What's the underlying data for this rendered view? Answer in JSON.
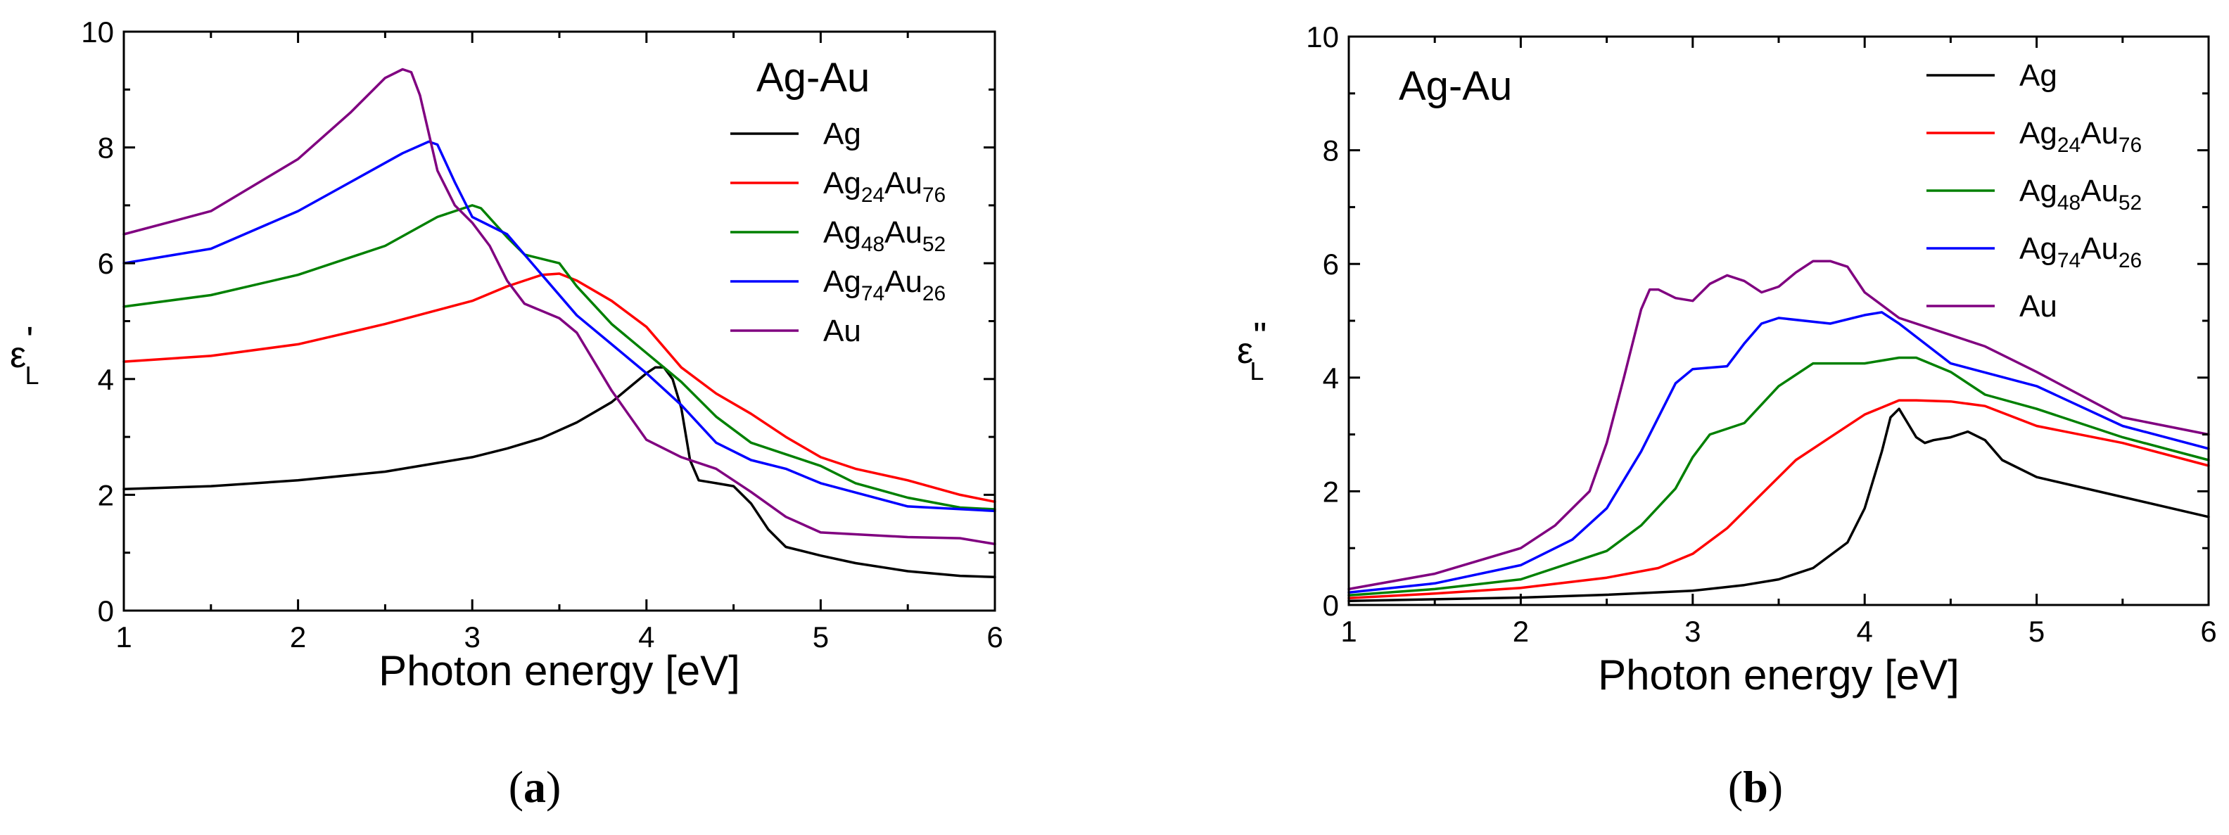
{
  "chart_data": [
    {
      "id": "a",
      "type": "line",
      "caption_letter": "a",
      "ylabel": "ε",
      "ylabel_prime": "'",
      "ylabel_sub": "L",
      "xlabel": "Photon energy [eV]",
      "xlim": [
        1,
        6
      ],
      "ylim": [
        0,
        10
      ],
      "xticks": [
        1,
        2,
        3,
        4,
        5,
        6
      ],
      "yticks": [
        0,
        2,
        4,
        6,
        8,
        10
      ],
      "legend_title": "Ag-Au",
      "legend_position": "top-right",
      "series": [
        {
          "name": "Ag",
          "label_parts": [
            [
              "Ag",
              ""
            ]
          ],
          "color": "#000000",
          "x": [
            1.0,
            1.5,
            2.0,
            2.5,
            2.8,
            3.0,
            3.2,
            3.4,
            3.6,
            3.8,
            3.9,
            4.0,
            4.05,
            4.1,
            4.15,
            4.2,
            4.25,
            4.3,
            4.4,
            4.5,
            4.6,
            4.7,
            4.8,
            5.0,
            5.2,
            5.5,
            5.8,
            6.0
          ],
          "y": [
            2.1,
            2.15,
            2.25,
            2.4,
            2.55,
            2.65,
            2.8,
            2.98,
            3.25,
            3.6,
            3.85,
            4.1,
            4.2,
            4.2,
            4.0,
            3.5,
            2.6,
            2.25,
            2.2,
            2.15,
            1.85,
            1.4,
            1.1,
            0.95,
            0.82,
            0.68,
            0.6,
            0.58
          ]
        },
        {
          "name": "Ag24Au76",
          "label_parts": [
            [
              "Ag",
              "24"
            ],
            [
              "Au",
              "76"
            ]
          ],
          "color": "#ff0000",
          "x": [
            1.0,
            1.5,
            2.0,
            2.5,
            3.0,
            3.2,
            3.4,
            3.5,
            3.6,
            3.8,
            4.0,
            4.2,
            4.4,
            4.6,
            4.8,
            5.0,
            5.2,
            5.5,
            5.8,
            6.0
          ],
          "y": [
            4.3,
            4.4,
            4.6,
            4.95,
            5.35,
            5.6,
            5.8,
            5.82,
            5.7,
            5.35,
            4.9,
            4.2,
            3.75,
            3.4,
            3.0,
            2.65,
            2.45,
            2.25,
            2.0,
            1.88
          ]
        },
        {
          "name": "Ag48Au52",
          "label_parts": [
            [
              "Ag",
              "48"
            ],
            [
              "Au",
              "52"
            ]
          ],
          "color": "#008000",
          "x": [
            1.0,
            1.5,
            2.0,
            2.5,
            2.8,
            3.0,
            3.05,
            3.2,
            3.3,
            3.5,
            3.6,
            3.8,
            4.0,
            4.2,
            4.4,
            4.6,
            4.8,
            5.0,
            5.2,
            5.5,
            5.8,
            6.0
          ],
          "y": [
            5.25,
            5.45,
            5.8,
            6.3,
            6.8,
            7.0,
            6.95,
            6.45,
            6.15,
            6.0,
            5.6,
            4.95,
            4.45,
            3.95,
            3.35,
            2.9,
            2.7,
            2.5,
            2.2,
            1.95,
            1.78,
            1.75
          ]
        },
        {
          "name": "Ag74Au26",
          "label_parts": [
            [
              "Ag",
              "74"
            ],
            [
              "Au",
              "26"
            ]
          ],
          "color": "#0000ff",
          "x": [
            1.0,
            1.5,
            2.0,
            2.3,
            2.6,
            2.75,
            2.8,
            2.9,
            3.0,
            3.2,
            3.4,
            3.6,
            3.8,
            4.0,
            4.2,
            4.4,
            4.6,
            4.8,
            5.0,
            5.5,
            6.0
          ],
          "y": [
            6.0,
            6.25,
            6.9,
            7.4,
            7.9,
            8.1,
            8.05,
            7.4,
            6.8,
            6.5,
            5.8,
            5.1,
            4.6,
            4.1,
            3.55,
            2.9,
            2.6,
            2.45,
            2.2,
            1.8,
            1.72
          ]
        },
        {
          "name": "Au",
          "label_parts": [
            [
              "Au",
              ""
            ]
          ],
          "color": "#800080",
          "x": [
            1.0,
            1.5,
            2.0,
            2.3,
            2.5,
            2.6,
            2.65,
            2.7,
            2.8,
            2.9,
            3.0,
            3.1,
            3.2,
            3.3,
            3.5,
            3.6,
            3.8,
            4.0,
            4.2,
            4.4,
            4.6,
            4.8,
            5.0,
            5.5,
            5.8,
            6.0
          ],
          "y": [
            6.5,
            6.9,
            7.8,
            8.6,
            9.2,
            9.35,
            9.3,
            8.9,
            7.6,
            7.0,
            6.7,
            6.3,
            5.7,
            5.3,
            5.05,
            4.8,
            3.8,
            2.95,
            2.65,
            2.45,
            2.05,
            1.62,
            1.35,
            1.27,
            1.25,
            1.15
          ]
        }
      ]
    },
    {
      "id": "b",
      "type": "line",
      "caption_letter": "b",
      "ylabel": "ε",
      "ylabel_prime": "\"",
      "ylabel_sub": "L",
      "xlabel": "Photon energy [eV]",
      "xlim": [
        1,
        6
      ],
      "ylim": [
        0,
        10
      ],
      "xticks": [
        1,
        2,
        3,
        4,
        5,
        6
      ],
      "yticks": [
        0,
        2,
        4,
        6,
        8,
        10
      ],
      "legend_title": "Ag-Au",
      "legend_position": "top-right",
      "series": [
        {
          "name": "Ag",
          "label_parts": [
            [
              "Ag",
              ""
            ]
          ],
          "color": "#000000",
          "x": [
            1.0,
            1.5,
            2.0,
            2.5,
            3.0,
            3.3,
            3.5,
            3.7,
            3.9,
            4.0,
            4.1,
            4.15,
            4.2,
            4.25,
            4.3,
            4.35,
            4.4,
            4.5,
            4.6,
            4.7,
            4.8,
            5.0,
            5.5,
            6.0
          ],
          "y": [
            0.07,
            0.1,
            0.13,
            0.18,
            0.25,
            0.35,
            0.45,
            0.65,
            1.1,
            1.7,
            2.7,
            3.3,
            3.45,
            3.2,
            2.95,
            2.85,
            2.9,
            2.95,
            3.05,
            2.9,
            2.55,
            2.25,
            1.9,
            1.55
          ]
        },
        {
          "name": "Ag24Au76",
          "label_parts": [
            [
              "Ag",
              "24"
            ],
            [
              "Au",
              "76"
            ]
          ],
          "color": "#ff0000",
          "x": [
            1.0,
            1.5,
            2.0,
            2.5,
            2.8,
            3.0,
            3.2,
            3.4,
            3.6,
            3.8,
            4.0,
            4.2,
            4.3,
            4.5,
            4.7,
            5.0,
            5.5,
            6.0
          ],
          "y": [
            0.12,
            0.2,
            0.3,
            0.48,
            0.65,
            0.9,
            1.35,
            1.95,
            2.55,
            2.95,
            3.35,
            3.6,
            3.6,
            3.58,
            3.5,
            3.15,
            2.85,
            2.45
          ]
        },
        {
          "name": "Ag48Au52",
          "label_parts": [
            [
              "Ag",
              "48"
            ],
            [
              "Au",
              "52"
            ]
          ],
          "color": "#008000",
          "x": [
            1.0,
            1.5,
            2.0,
            2.5,
            2.7,
            2.9,
            3.0,
            3.1,
            3.2,
            3.3,
            3.5,
            3.7,
            3.9,
            4.0,
            4.2,
            4.3,
            4.5,
            4.7,
            5.0,
            5.5,
            6.0
          ],
          "y": [
            0.17,
            0.28,
            0.45,
            0.95,
            1.4,
            2.05,
            2.6,
            3.0,
            3.1,
            3.2,
            3.85,
            4.25,
            4.25,
            4.25,
            4.35,
            4.35,
            4.1,
            3.7,
            3.45,
            2.95,
            2.55
          ]
        },
        {
          "name": "Ag74Au26",
          "label_parts": [
            [
              "Ag",
              "74"
            ],
            [
              "Au",
              "26"
            ]
          ],
          "color": "#0000ff",
          "x": [
            1.0,
            1.5,
            2.0,
            2.3,
            2.5,
            2.7,
            2.9,
            3.0,
            3.2,
            3.3,
            3.4,
            3.5,
            3.8,
            4.0,
            4.1,
            4.2,
            4.5,
            5.0,
            5.5,
            6.0
          ],
          "y": [
            0.22,
            0.38,
            0.7,
            1.15,
            1.7,
            2.7,
            3.9,
            4.15,
            4.2,
            4.6,
            4.95,
            5.05,
            4.95,
            5.1,
            5.15,
            4.95,
            4.25,
            3.85,
            3.15,
            2.75
          ]
        },
        {
          "name": "Au",
          "label_parts": [
            [
              "Au",
              ""
            ]
          ],
          "color": "#800080",
          "x": [
            1.0,
            1.5,
            2.0,
            2.2,
            2.4,
            2.5,
            2.6,
            2.7,
            2.75,
            2.8,
            2.9,
            3.0,
            3.1,
            3.2,
            3.3,
            3.4,
            3.5,
            3.6,
            3.7,
            3.8,
            3.9,
            4.0,
            4.2,
            4.5,
            4.7,
            5.0,
            5.5,
            6.0
          ],
          "y": [
            0.28,
            0.55,
            1.0,
            1.4,
            2.0,
            2.85,
            4.0,
            5.2,
            5.55,
            5.55,
            5.4,
            5.35,
            5.65,
            5.8,
            5.7,
            5.5,
            5.6,
            5.85,
            6.05,
            6.05,
            5.95,
            5.5,
            5.05,
            4.75,
            4.55,
            4.1,
            3.3,
            3.0
          ]
        }
      ]
    }
  ]
}
